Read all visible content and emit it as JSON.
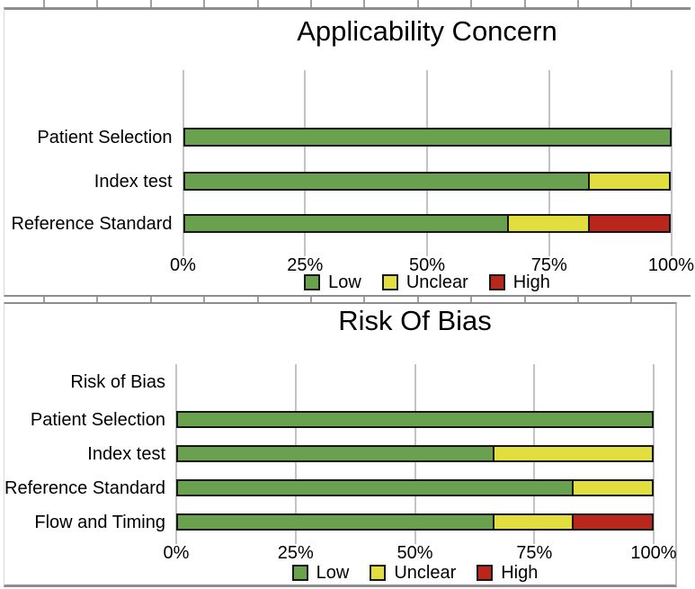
{
  "colors": {
    "low": "#69A14E",
    "unclear": "#E3DE3F",
    "high": "#B8261C",
    "bar_border": "#161616",
    "gridline": "#c3c3c3",
    "panel_border": "#8d8d8d",
    "stub": "#a0a0a0",
    "text": "#000000",
    "background": "#ffffff"
  },
  "chart_data": [
    {
      "type": "bar",
      "orientation": "horizontal",
      "stacked": true,
      "title": "Applicability Concern",
      "categories": [
        "Patient Selection",
        "Index test",
        "Reference Standard"
      ],
      "series": [
        {
          "name": "Low",
          "values": [
            100,
            83.3,
            66.7
          ]
        },
        {
          "name": "Unclear",
          "values": [
            0,
            16.7,
            16.6
          ]
        },
        {
          "name": "High",
          "values": [
            0,
            0,
            16.7
          ]
        }
      ],
      "xlabel": "",
      "ylabel": "",
      "xlim": [
        0,
        100
      ],
      "x_ticks": [
        0,
        25,
        50,
        75,
        100
      ],
      "x_tick_labels": [
        "0%",
        "25%",
        "50%",
        "75%",
        "100%"
      ],
      "legend": [
        "Low",
        "Unclear",
        "High"
      ],
      "legend_position": "bottom",
      "grid": "vertical-only"
    },
    {
      "type": "bar",
      "orientation": "horizontal",
      "stacked": true,
      "title": "Risk Of Bias",
      "categories": [
        "Risk of Bias",
        "Patient Selection",
        "Index test",
        "Reference Standard",
        "Flow and Timing"
      ],
      "series": [
        {
          "name": "Low",
          "values": [
            0,
            100,
            66.7,
            83.3,
            66.7
          ]
        },
        {
          "name": "Unclear",
          "values": [
            0,
            0,
            33.3,
            16.7,
            16.6
          ]
        },
        {
          "name": "High",
          "values": [
            0,
            0,
            0,
            0,
            16.7
          ]
        }
      ],
      "xlabel": "",
      "ylabel": "",
      "xlim": [
        0,
        100
      ],
      "x_ticks": [
        0,
        25,
        50,
        75,
        100
      ],
      "x_tick_labels": [
        "0%",
        "25%",
        "50%",
        "75%",
        "100%"
      ],
      "legend": [
        "Low",
        "Unclear",
        "High"
      ],
      "legend_position": "bottom",
      "grid": "vertical-only"
    }
  ]
}
